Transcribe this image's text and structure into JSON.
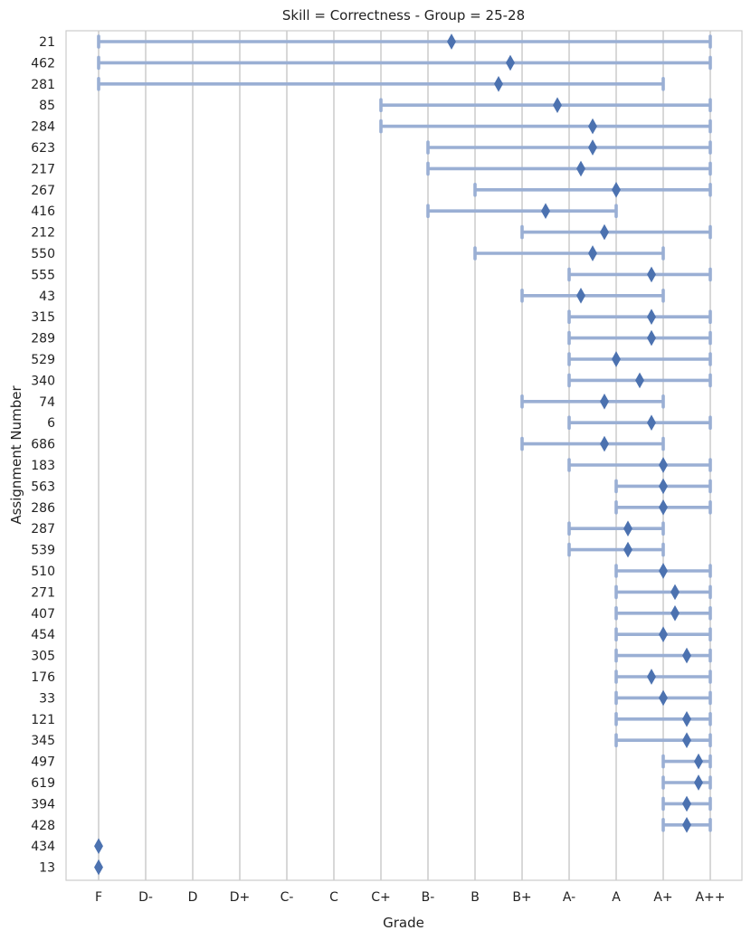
{
  "chart_data": {
    "type": "range-dot",
    "title": "Skill = Correctness - Group = 25-28",
    "xlabel": "Grade",
    "ylabel": "Assignment Number",
    "grades": [
      "F",
      "D-",
      "D",
      "D+",
      "C-",
      "C",
      "C+",
      "B-",
      "B",
      "B+",
      "A-",
      "A",
      "A+",
      "A++"
    ],
    "grid": "vertical",
    "colors": {
      "range": "#9aafd4",
      "marker": "#4c72b0",
      "grid": "#cccccc",
      "frame": "#cccccc"
    },
    "assignments": [
      {
        "id": "21",
        "min": 0,
        "max": 13,
        "mean": 7.5
      },
      {
        "id": "462",
        "min": 0,
        "max": 13,
        "mean": 8.75
      },
      {
        "id": "281",
        "min": 0,
        "max": 12,
        "mean": 8.5
      },
      {
        "id": "85",
        "min": 6,
        "max": 13,
        "mean": 9.75
      },
      {
        "id": "284",
        "min": 6,
        "max": 13,
        "mean": 10.5
      },
      {
        "id": "623",
        "min": 7,
        "max": 13,
        "mean": 10.5
      },
      {
        "id": "217",
        "min": 7,
        "max": 13,
        "mean": 10.25
      },
      {
        "id": "267",
        "min": 8,
        "max": 13,
        "mean": 11
      },
      {
        "id": "416",
        "min": 7,
        "max": 11,
        "mean": 9.5
      },
      {
        "id": "212",
        "min": 9,
        "max": 13,
        "mean": 10.75
      },
      {
        "id": "550",
        "min": 8,
        "max": 12,
        "mean": 10.5
      },
      {
        "id": "555",
        "min": 10,
        "max": 13,
        "mean": 11.75
      },
      {
        "id": "43",
        "min": 9,
        "max": 12,
        "mean": 10.25
      },
      {
        "id": "315",
        "min": 10,
        "max": 13,
        "mean": 11.75
      },
      {
        "id": "289",
        "min": 10,
        "max": 13,
        "mean": 11.75
      },
      {
        "id": "529",
        "min": 10,
        "max": 13,
        "mean": 11
      },
      {
        "id": "340",
        "min": 10,
        "max": 13,
        "mean": 11.5
      },
      {
        "id": "74",
        "min": 9,
        "max": 12,
        "mean": 10.75
      },
      {
        "id": "6",
        "min": 10,
        "max": 13,
        "mean": 11.75
      },
      {
        "id": "686",
        "min": 9,
        "max": 12,
        "mean": 10.75
      },
      {
        "id": "183",
        "min": 10,
        "max": 13,
        "mean": 12
      },
      {
        "id": "563",
        "min": 11,
        "max": 13,
        "mean": 12
      },
      {
        "id": "286",
        "min": 11,
        "max": 13,
        "mean": 12
      },
      {
        "id": "287",
        "min": 10,
        "max": 12,
        "mean": 11.25
      },
      {
        "id": "539",
        "min": 10,
        "max": 12,
        "mean": 11.25
      },
      {
        "id": "510",
        "min": 11,
        "max": 13,
        "mean": 12
      },
      {
        "id": "271",
        "min": 11,
        "max": 13,
        "mean": 12.25
      },
      {
        "id": "407",
        "min": 11,
        "max": 13,
        "mean": 12.25
      },
      {
        "id": "454",
        "min": 11,
        "max": 13,
        "mean": 12
      },
      {
        "id": "305",
        "min": 11,
        "max": 13,
        "mean": 12.5
      },
      {
        "id": "176",
        "min": 11,
        "max": 13,
        "mean": 11.75
      },
      {
        "id": "33",
        "min": 11,
        "max": 13,
        "mean": 12
      },
      {
        "id": "121",
        "min": 11,
        "max": 13,
        "mean": 12.5
      },
      {
        "id": "345",
        "min": 11,
        "max": 13,
        "mean": 12.5
      },
      {
        "id": "497",
        "min": 12,
        "max": 13,
        "mean": 12.75
      },
      {
        "id": "619",
        "min": 12,
        "max": 13,
        "mean": 12.75
      },
      {
        "id": "394",
        "min": 12,
        "max": 13,
        "mean": 12.5
      },
      {
        "id": "428",
        "min": 12,
        "max": 13,
        "mean": 12.5
      },
      {
        "id": "434",
        "min": 0,
        "max": 0,
        "mean": 0
      },
      {
        "id": "13",
        "min": 0,
        "max": 0,
        "mean": 0
      }
    ]
  }
}
